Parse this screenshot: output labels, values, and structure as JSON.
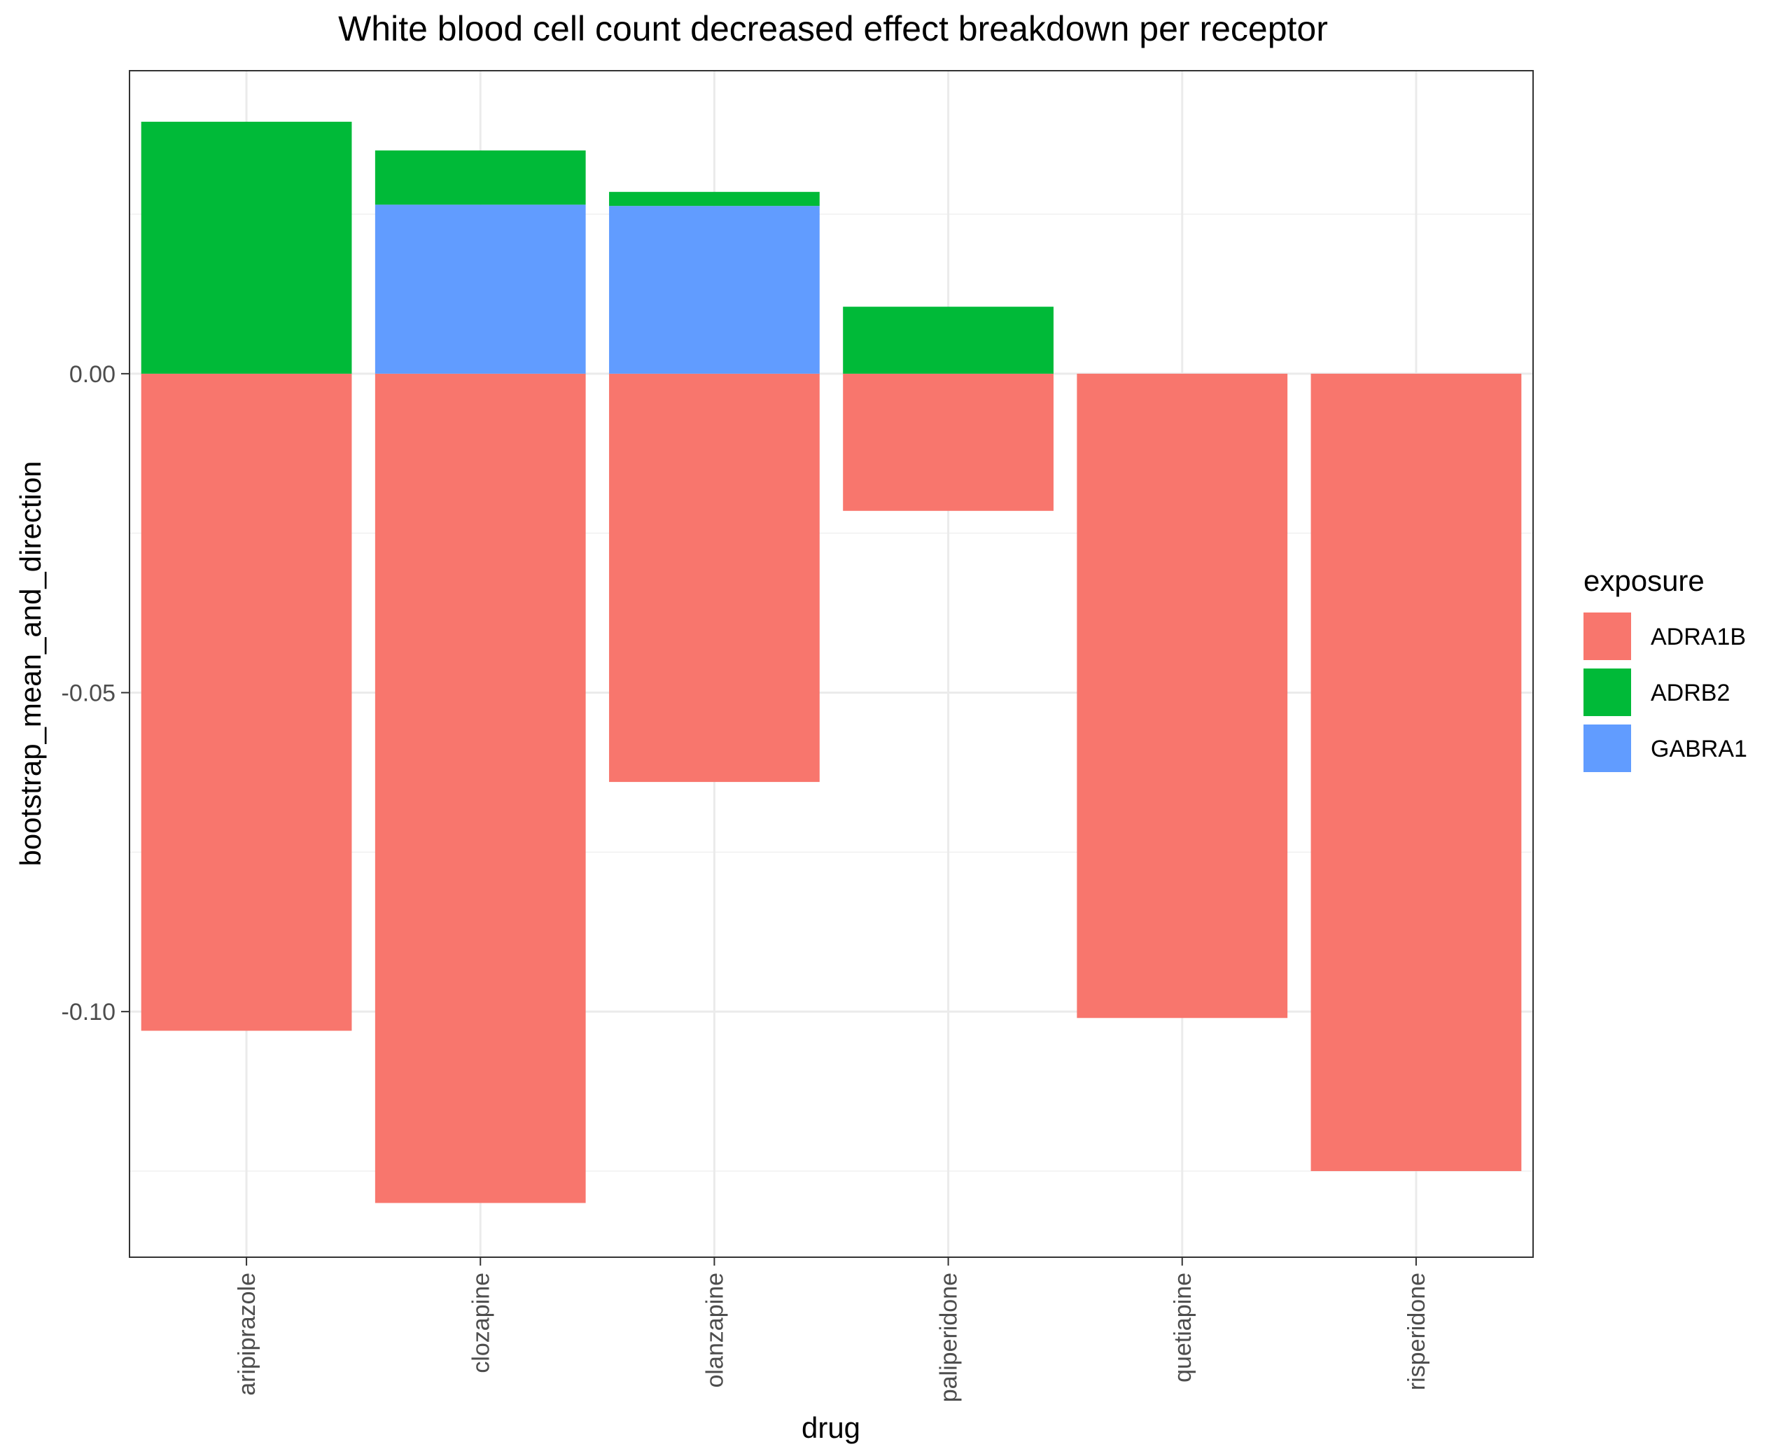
{
  "chart_data": {
    "type": "bar",
    "stacked": true,
    "title": "White blood cell count decreased effect breakdown per receptor",
    "xlabel": "drug",
    "ylabel": "bootstrap_mean_and_direction",
    "categories": [
      "aripiprazole",
      "clozapine",
      "olanzapine",
      "paliperidone",
      "quetiapine",
      "risperidone"
    ],
    "series": [
      {
        "name": "ADRA1B",
        "color": "#F8766D",
        "values": [
          -0.103,
          -0.13,
          -0.064,
          -0.0215,
          -0.101,
          -0.125
        ]
      },
      {
        "name": "ADRB2",
        "color": "#00BA38",
        "values": [
          0.0395,
          0.0085,
          0.0022,
          0.0105,
          0,
          0
        ]
      },
      {
        "name": "GABRA1",
        "color": "#619CFF",
        "values": [
          0,
          0.0265,
          0.0263,
          0,
          0,
          0
        ]
      }
    ],
    "stack_order": [
      "GABRA1",
      "ADRB2"
    ],
    "yticks": [
      0.0,
      -0.05,
      -0.1
    ],
    "ytick_labels": [
      "0.00",
      "-0.05",
      "-0.10"
    ],
    "ylim": [
      -0.1385,
      0.0475
    ],
    "grid": true,
    "legend": {
      "title": "exposure",
      "position": "right"
    }
  }
}
